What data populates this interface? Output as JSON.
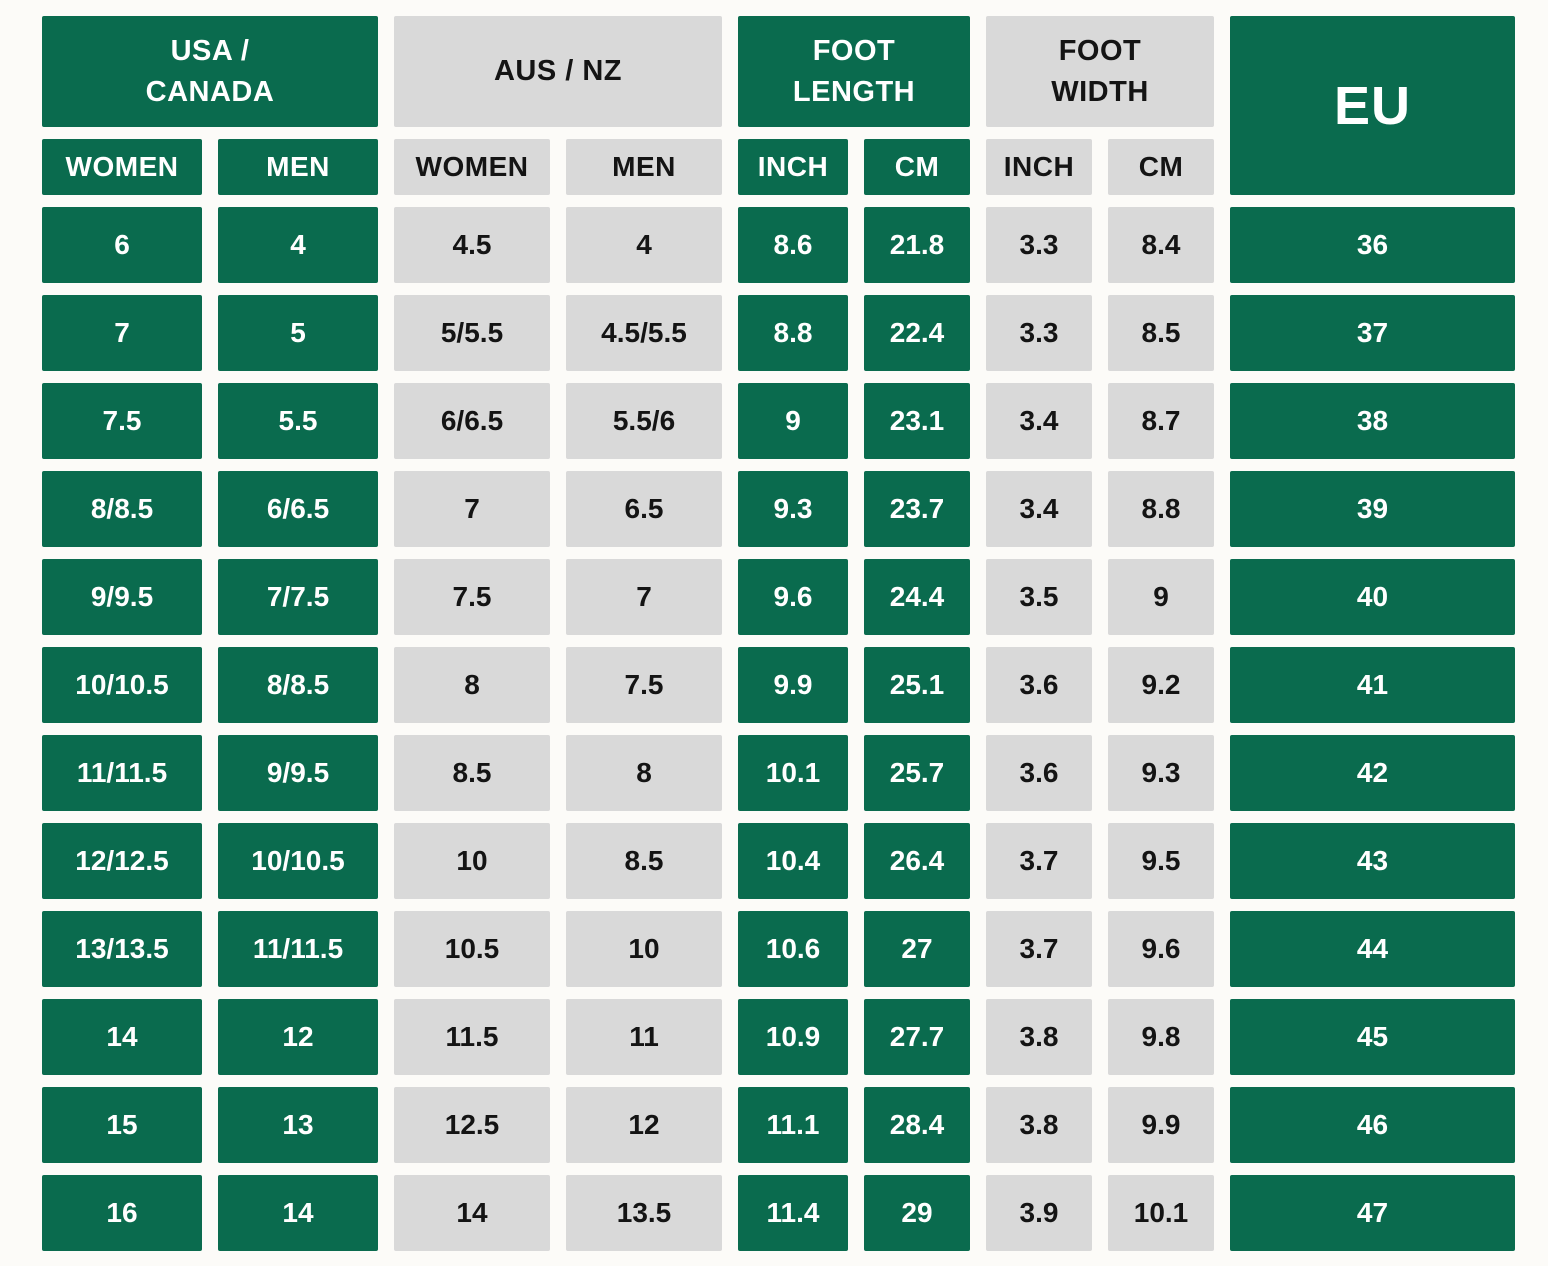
{
  "chart_data": {
    "type": "table",
    "column_groups": [
      {
        "label": "USA / CANADA",
        "style": "green",
        "columns": [
          "WOMEN",
          "MEN"
        ]
      },
      {
        "label": "AUS / NZ",
        "style": "gray",
        "columns": [
          "WOMEN",
          "MEN"
        ]
      },
      {
        "label": "FOOT LENGTH",
        "style": "green",
        "columns": [
          "INCH",
          "CM"
        ]
      },
      {
        "label": "FOOT WIDTH",
        "style": "gray",
        "columns": [
          "INCH",
          "CM"
        ]
      },
      {
        "label": "EU",
        "style": "green",
        "columns": []
      }
    ],
    "rows": [
      [
        "6",
        "4",
        "4.5",
        "4",
        "8.6",
        "21.8",
        "3.3",
        "8.4",
        "36"
      ],
      [
        "7",
        "5",
        "5/5.5",
        "4.5/5.5",
        "8.8",
        "22.4",
        "3.3",
        "8.5",
        "37"
      ],
      [
        "7.5",
        "5.5",
        "6/6.5",
        "5.5/6",
        "9",
        "23.1",
        "3.4",
        "8.7",
        "38"
      ],
      [
        "8/8.5",
        "6/6.5",
        "7",
        "6.5",
        "9.3",
        "23.7",
        "3.4",
        "8.8",
        "39"
      ],
      [
        "9/9.5",
        "7/7.5",
        "7.5",
        "7",
        "9.6",
        "24.4",
        "3.5",
        "9",
        "40"
      ],
      [
        "10/10.5",
        "8/8.5",
        "8",
        "7.5",
        "9.9",
        "25.1",
        "3.6",
        "9.2",
        "41"
      ],
      [
        "11/11.5",
        "9/9.5",
        "8.5",
        "8",
        "10.1",
        "25.7",
        "3.6",
        "9.3",
        "42"
      ],
      [
        "12/12.5",
        "10/10.5",
        "10",
        "8.5",
        "10.4",
        "26.4",
        "3.7",
        "9.5",
        "43"
      ],
      [
        "13/13.5",
        "11/11.5",
        "10.5",
        "10",
        "10.6",
        "27",
        "3.7",
        "9.6",
        "44"
      ],
      [
        "14",
        "12",
        "11.5",
        "11",
        "10.9",
        "27.7",
        "3.8",
        "9.8",
        "45"
      ],
      [
        "15",
        "13",
        "12.5",
        "12",
        "11.1",
        "28.4",
        "3.8",
        "9.9",
        "46"
      ],
      [
        "16",
        "14",
        "14",
        "13.5",
        "11.4",
        "29",
        "3.9",
        "10.1",
        "47"
      ]
    ],
    "layout": {
      "column_styles": [
        "green",
        "green",
        "gray",
        "gray",
        "green",
        "green",
        "gray",
        "gray",
        "green"
      ],
      "eu_header_spans_subheader_row": true
    },
    "colors": {
      "green": "#0A6B4E",
      "gray": "#D9D9D9",
      "text_on_green": "#FFFFFF",
      "text_on_gray": "#141414",
      "background": "#FCFBF8"
    }
  }
}
